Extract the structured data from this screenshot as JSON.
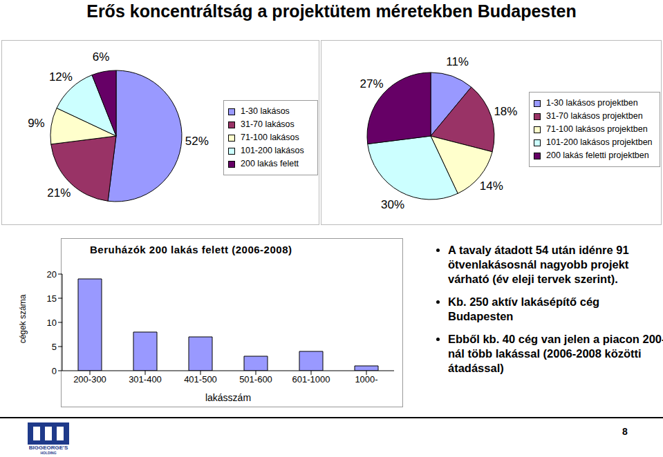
{
  "title": "Erős koncentráltság a projektütem méretekben Budapesten",
  "chart_data": [
    {
      "type": "pie",
      "categories": [
        "1-30 lakásos",
        "31-70 lakásos",
        "71-100 lakásos",
        "101-200 lakásos",
        "200 lakás felett"
      ],
      "values": [
        52,
        21,
        9,
        12,
        6
      ],
      "value_labels": [
        "52%",
        "21%",
        "9%",
        "12%",
        "6%"
      ],
      "colors": [
        "#9999ff",
        "#993366",
        "#ffffcc",
        "#ccffff",
        "#660066"
      ],
      "data_labels": true,
      "legend": "right"
    },
    {
      "type": "pie",
      "categories": [
        "1-30 lakásos projektben",
        "31-70 lakásos projektben",
        "71-100 lakásos projektben",
        "101-200 lakásos projektben",
        "200 lakás feletti projektben"
      ],
      "values": [
        11,
        18,
        14,
        30,
        27
      ],
      "value_labels": [
        "11%",
        "18%",
        "14%",
        "30%",
        "27%"
      ],
      "colors": [
        "#9999ff",
        "#993366",
        "#ffffcc",
        "#ccffff",
        "#660066"
      ],
      "data_labels": true,
      "legend": "right"
    },
    {
      "type": "bar",
      "title": "Beruházók 200 lakás felett (2006-2008)",
      "x_label": "lakásszám",
      "y_label": "cégek száma",
      "categories": [
        "200-300",
        "301-400",
        "401-500",
        "501-600",
        "601-1000",
        "1000-"
      ],
      "values": [
        19,
        8,
        7,
        3,
        4,
        1
      ],
      "color": "#9999ff",
      "ylim": [
        0,
        20
      ],
      "yticks": [
        0,
        5,
        10,
        15,
        20
      ],
      "grid": false
    }
  ],
  "bullets": [
    "A tavaly átadott 54 után idénre 91 ötvenlakásosnál nagyobb projekt várható (év eleji tervek szerint).",
    "Kb. 250 aktív lakásépítő cég Budapesten",
    "Ebből kb. 40 cég van jelen a piacon 200-nál több lakással (2006-2008 közötti átadással)"
  ],
  "page_number": "8",
  "logo_text": [
    "BIGGEORGE'S",
    "HOLDING"
  ]
}
